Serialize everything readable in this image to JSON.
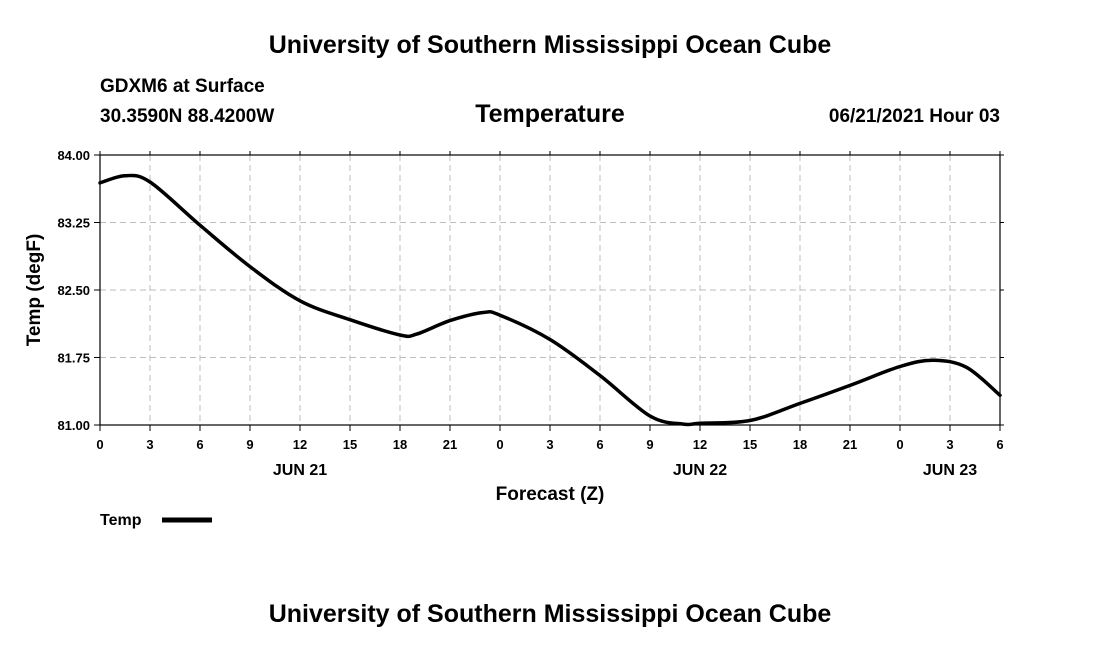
{
  "header": {
    "title_top": "University of Southern Mississippi Ocean Cube",
    "station": "GDXM6 at Surface",
    "coords": "30.3590N  88.4200W",
    "variable": "Temperature",
    "run_time": "06/21/2021 Hour 03"
  },
  "footer": {
    "title_bottom": "University of Southern Mississippi Ocean Cube"
  },
  "colors": {
    "line": "#000000",
    "grid": "#bdbdbd",
    "background": "#ffffff"
  },
  "chart_data": {
    "type": "line",
    "title": "Temperature",
    "xlabel": "Forecast (Z)",
    "ylabel": "Temp (degF)",
    "ylim": [
      81.0,
      84.0
    ],
    "xlim": [
      0,
      54
    ],
    "grid": true,
    "y_ticks": [
      "84.00",
      "83.25",
      "82.50",
      "81.75",
      "81.00"
    ],
    "y_tick_values": [
      84.0,
      83.25,
      82.5,
      81.75,
      81.0
    ],
    "x_tick_labels": [
      "0",
      "3",
      "6",
      "9",
      "12",
      "15",
      "18",
      "21",
      "0",
      "3",
      "6",
      "9",
      "12",
      "15",
      "18",
      "21",
      "0",
      "3",
      "6"
    ],
    "date_labels": [
      {
        "label": "JUN 21",
        "hour": 12
      },
      {
        "label": "JUN 22",
        "hour": 36
      },
      {
        "label": "JUN 23",
        "hour": 51
      }
    ],
    "legend": {
      "label": "Temp",
      "position": "bottom-left"
    },
    "series": [
      {
        "name": "Temp",
        "x": [
          0,
          1.5,
          3,
          6,
          9,
          12,
          15,
          18,
          19,
          21,
          23,
          24,
          27,
          30,
          33,
          35,
          36,
          39,
          42,
          45,
          48,
          50,
          52,
          54
        ],
        "values": [
          83.69,
          83.77,
          83.7,
          83.22,
          82.76,
          82.38,
          82.17,
          82.0,
          82.01,
          82.16,
          82.25,
          82.22,
          81.95,
          81.55,
          81.1,
          81.01,
          81.02,
          81.05,
          81.24,
          81.44,
          81.65,
          81.72,
          81.64,
          81.33
        ]
      }
    ]
  }
}
